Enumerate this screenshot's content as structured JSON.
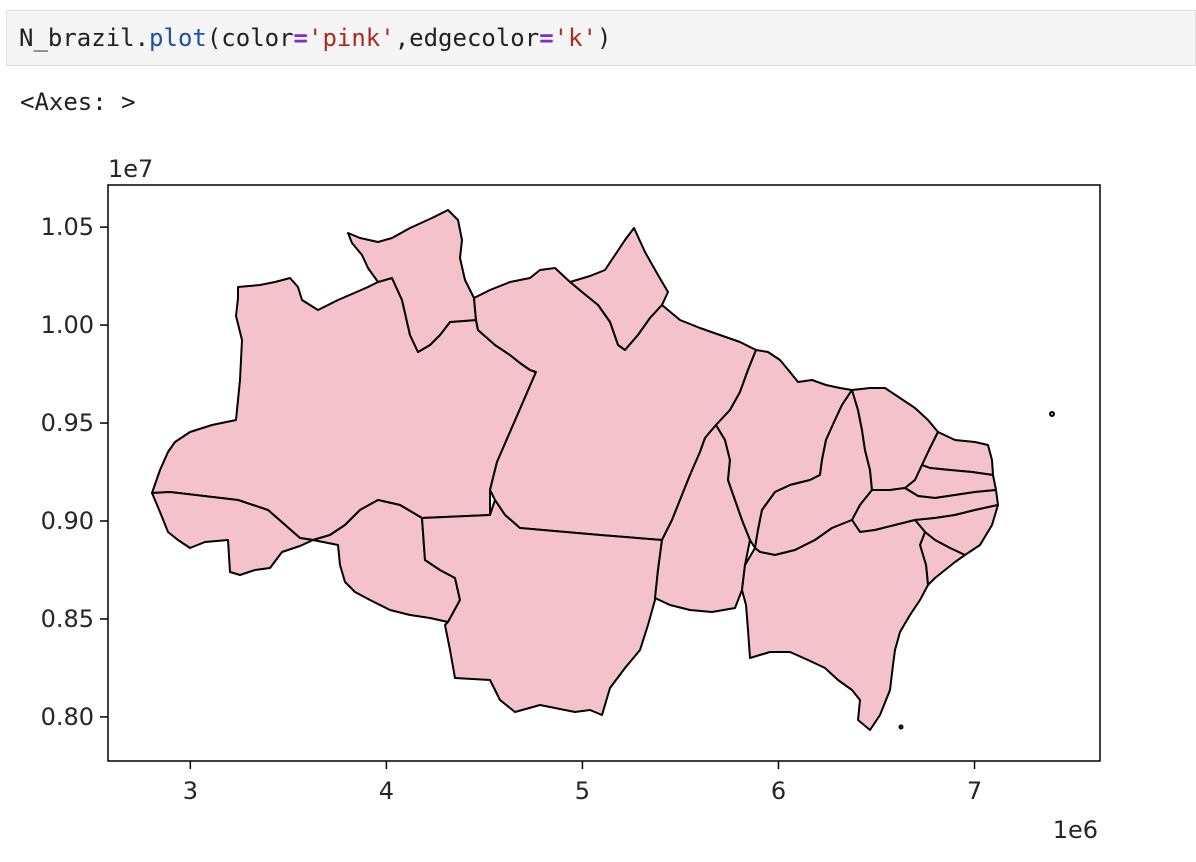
{
  "cell": {
    "code": {
      "object": "N_brazil",
      "dot": ".",
      "method": "plot",
      "open_paren": "(",
      "arg1_name": "color",
      "eq1": "=",
      "arg1_value": "'pink'",
      "comma": ",",
      "arg2_name": "edgecolor",
      "eq2": "=",
      "arg2_value": "'k'",
      "close_paren": ")"
    },
    "output_text": "<Axes: >"
  },
  "colors": {
    "fill": "#f4c2cb",
    "edge": "#000000",
    "method": "#1f4fa8",
    "string": "#b0281f",
    "operator": "#7b30c8"
  },
  "chart_data": {
    "type": "map",
    "x_ticks": [
      "3",
      "4",
      "5",
      "6",
      "7"
    ],
    "x_tick_values": [
      3,
      4,
      5,
      6,
      7
    ],
    "x_exponent": "1e6",
    "y_ticks": [
      "1.05",
      "1.00",
      "0.95",
      "0.90",
      "0.85",
      "0.80"
    ],
    "y_tick_values": [
      1.05,
      1.0,
      0.95,
      0.9,
      0.85,
      0.8
    ],
    "y_exponent": "1e7",
    "xlim": [
      2.58,
      7.64
    ],
    "ylim": [
      0.7775,
      1.0715
    ],
    "grid": false,
    "fill_color": "pink",
    "edge_color": "k"
  }
}
